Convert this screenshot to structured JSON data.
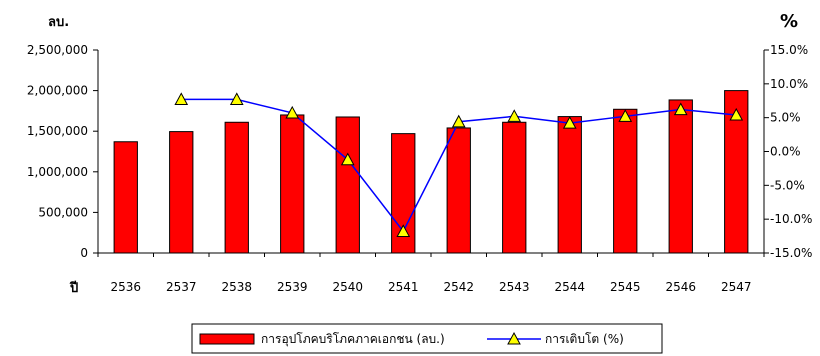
{
  "chart_data": {
    "type": "bar",
    "y_left_unit": "ลบ.",
    "y_right_unit": "%",
    "x_prefix": "ปี",
    "categories": [
      "2536",
      "2537",
      "2538",
      "2539",
      "2540",
      "2541",
      "2542",
      "2543",
      "2544",
      "2545",
      "2546",
      "2547"
    ],
    "series": [
      {
        "name": "การอุปโภคบริโภคภาคเอกชน (ลบ.)",
        "type": "bar",
        "axis": "left",
        "color": "#ff0000",
        "values": [
          1370000,
          1495000,
          1610000,
          1700000,
          1675000,
          1470000,
          1540000,
          1610000,
          1680000,
          1770000,
          1885000,
          2000000
        ]
      },
      {
        "name": "การเติบโต (%)",
        "type": "line",
        "axis": "right",
        "color": "#0000ff",
        "marker": "triangle",
        "marker_color": "#ffff00",
        "values": [
          null,
          7.7,
          7.7,
          5.7,
          -1.2,
          -11.8,
          4.4,
          5.2,
          4.2,
          5.2,
          6.2,
          5.4
        ]
      }
    ],
    "y_left": {
      "ticks": [
        "0",
        "500,000",
        "1,000,000",
        "1,500,000",
        "2,000,000",
        "2,500,000"
      ],
      "lim": [
        0,
        2500000
      ]
    },
    "y_right": {
      "ticks": [
        "-15.0%",
        "-10.0%",
        "-5.0%",
        "0.0%",
        "5.0%",
        "10.0%",
        "15.0%"
      ],
      "lim": [
        -15,
        15
      ]
    },
    "grid": false,
    "legend_position": "bottom"
  }
}
